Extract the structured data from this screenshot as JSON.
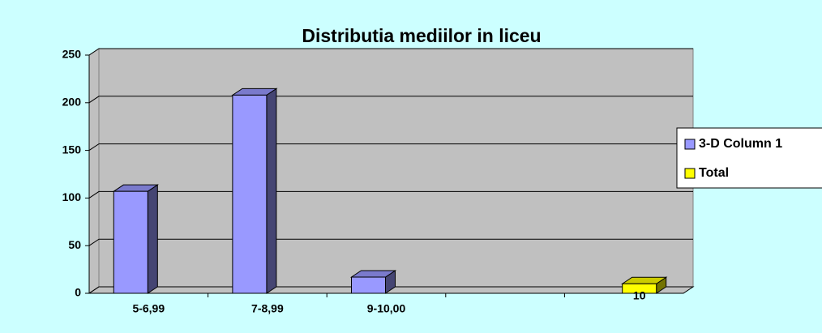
{
  "chart_data": {
    "type": "bar3d",
    "title": "Distributia mediilor in liceu",
    "categories": [
      "5-6,99",
      "7-8,99",
      "9-10,00",
      null,
      null
    ],
    "series": [
      {
        "name": "3-D Column 1",
        "color": "#9999ff",
        "values": [
          107,
          208,
          17,
          null,
          null
        ]
      },
      {
        "name": "Total",
        "color": "#ffff00",
        "values": [
          null,
          null,
          null,
          null,
          10
        ]
      }
    ],
    "ylim": [
      0,
      250
    ],
    "yticks": [
      0,
      50,
      100,
      150,
      200,
      250
    ],
    "grid": true,
    "legend": "right",
    "data_labels_series": [
      1
    ]
  }
}
